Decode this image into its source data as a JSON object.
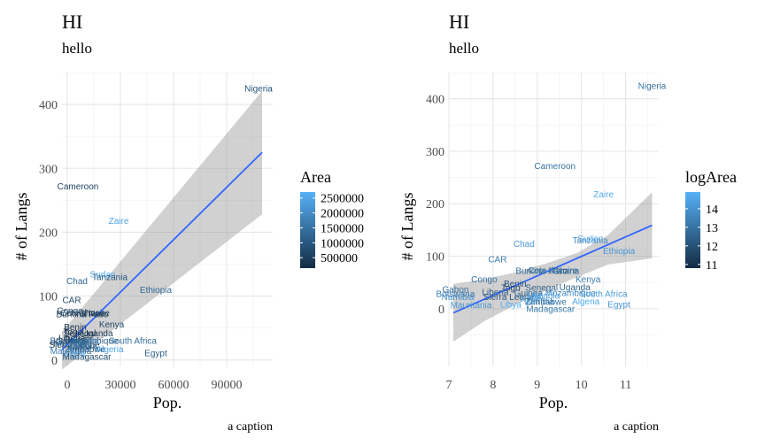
{
  "chart_data": [
    {
      "type": "scatter",
      "title": "HI",
      "subtitle": "hello",
      "xlabel": "Pop.",
      "ylabel": "# of Langs",
      "caption": "a caption",
      "xlim": [
        -3000,
        116000
      ],
      "ylim": [
        -10,
        450
      ],
      "xticks": [
        "0",
        "30000",
        "60000",
        "90000"
      ],
      "xtick_values": [
        0,
        30000,
        60000,
        90000
      ],
      "yticks": [
        "0",
        "100",
        "200",
        "300",
        "400"
      ],
      "ytick_values": [
        0,
        100,
        200,
        300,
        400
      ],
      "legend": {
        "title": "Area",
        "labels": [
          "2500000",
          "2000000",
          "1500000",
          "1000000",
          "500000"
        ],
        "values": [
          2500000,
          2000000,
          1500000,
          1000000,
          500000
        ],
        "range": [
          150000,
          2700000
        ],
        "colors": [
          "#132B43",
          "#56B1F7"
        ],
        "position": "right"
      },
      "points": [
        {
          "label": "Nigeria",
          "x": 108000,
          "y": 425,
          "c": 0.3
        },
        {
          "label": "Cameroon",
          "x": 6000,
          "y": 272,
          "c": 0.15
        },
        {
          "label": "Zaire",
          "x": 29000,
          "y": 218,
          "c": 0.9
        },
        {
          "label": "Chad",
          "x": 5500,
          "y": 124,
          "c": 0.45
        },
        {
          "label": "Sudan",
          "x": 20000,
          "y": 134,
          "c": 0.95
        },
        {
          "label": "Tanzania",
          "x": 24000,
          "y": 130,
          "c": 0.35
        },
        {
          "label": "Ethiopia",
          "x": 50000,
          "y": 110,
          "c": 0.45
        },
        {
          "label": "CAR",
          "x": 2500,
          "y": 94,
          "c": 0.25
        },
        {
          "label": "Congo",
          "x": 1500,
          "y": 77,
          "c": 0.15
        },
        {
          "label": "Cote d'Ivoire",
          "x": 10000,
          "y": 74,
          "c": 0.15
        },
        {
          "label": "Burkina Faso",
          "x": 8500,
          "y": 72,
          "c": 0.12
        },
        {
          "label": "Ghana",
          "x": 14000,
          "y": 73,
          "c": 0.1
        },
        {
          "label": "Kenya",
          "x": 25000,
          "y": 56,
          "c": 0.2
        },
        {
          "label": "Benin",
          "x": 4500,
          "y": 52,
          "c": 0.05
        },
        {
          "label": "Togo",
          "x": 3200,
          "y": 44,
          "c": 0.03
        },
        {
          "label": "Senegal",
          "x": 7000,
          "y": 42,
          "c": 0.1
        },
        {
          "label": "Uganda",
          "x": 17000,
          "y": 42,
          "c": 0.1
        },
        {
          "label": "Liberia",
          "x": 2600,
          "y": 34,
          "c": 0.05
        },
        {
          "label": "Guinea",
          "x": 6000,
          "y": 32,
          "c": 0.1
        },
        {
          "label": "Gabon",
          "x": 1000,
          "y": 30,
          "c": 0.12
        },
        {
          "label": "Mozambique",
          "x": 14500,
          "y": 30,
          "c": 0.4
        },
        {
          "label": "Sierra Leone",
          "x": 4000,
          "y": 24,
          "c": 0.03
        },
        {
          "label": "Mali",
          "x": 8000,
          "y": 25,
          "c": 0.65
        },
        {
          "label": "Niger",
          "x": 7000,
          "y": 20,
          "c": 0.7
        },
        {
          "label": "Angola",
          "x": 10000,
          "y": 30,
          "c": 0.7
        },
        {
          "label": "Zambia",
          "x": 8500,
          "y": 22,
          "c": 0.5
        },
        {
          "label": "Zimbabwe",
          "x": 10000,
          "y": 17,
          "c": 0.25
        },
        {
          "label": "Namibia",
          "x": 1300,
          "y": 26,
          "c": 0.5
        },
        {
          "label": "Botswana",
          "x": 1200,
          "y": 30,
          "c": 0.35
        },
        {
          "label": "South Africa",
          "x": 37000,
          "y": 30,
          "c": 0.5
        },
        {
          "label": "Mauritania",
          "x": 2000,
          "y": 14,
          "c": 0.6
        },
        {
          "label": "Libya",
          "x": 4200,
          "y": 10,
          "c": 0.95
        },
        {
          "label": "Algeria",
          "x": 24000,
          "y": 17,
          "c": 0.9
        },
        {
          "label": "Madagascar",
          "x": 11000,
          "y": 5,
          "c": 0.25
        },
        {
          "label": "Egypt",
          "x": 50000,
          "y": 11,
          "c": 0.4
        }
      ],
      "fit": {
        "x": [
          -3000,
          110000
        ],
        "y": [
          16,
          325
        ]
      },
      "band": {
        "x": [
          -3000,
          110000
        ],
        "lower": [
          -15,
          228
        ],
        "upper": [
          44,
          421
        ]
      }
    },
    {
      "type": "scatter",
      "title": "HI",
      "subtitle": "hello",
      "xlabel": "Pop.",
      "ylabel": "# of Langs",
      "caption": "a caption",
      "xlim": [
        7.0,
        11.75
      ],
      "ylim": [
        -110,
        450
      ],
      "xticks": [
        "7",
        "8",
        "9",
        "10",
        "11"
      ],
      "xtick_values": [
        7,
        8,
        9,
        10,
        11
      ],
      "yticks": [
        "0",
        "100",
        "200",
        "300",
        "400"
      ],
      "ytick_values": [
        0,
        100,
        200,
        300,
        400
      ],
      "legend": {
        "title": "logArea",
        "labels": [
          "14",
          "13",
          "12",
          "11"
        ],
        "values": [
          14,
          13,
          12,
          11
        ],
        "range": [
          10.8,
          14.9
        ],
        "colors": [
          "#132B43",
          "#56B1F7"
        ],
        "position": "right"
      },
      "points": [
        {
          "label": "Nigeria",
          "x": 11.6,
          "y": 425,
          "c": 0.55
        },
        {
          "label": "Cameroon",
          "x": 9.4,
          "y": 272,
          "c": 0.55
        },
        {
          "label": "Zaire",
          "x": 10.5,
          "y": 218,
          "c": 0.95
        },
        {
          "label": "Chad",
          "x": 8.7,
          "y": 124,
          "c": 0.8
        },
        {
          "label": "Sudan",
          "x": 10.2,
          "y": 134,
          "c": 0.95
        },
        {
          "label": "Tanzania",
          "x": 10.2,
          "y": 130,
          "c": 0.7
        },
        {
          "label": "Ethiopia",
          "x": 10.85,
          "y": 110,
          "c": 0.8
        },
        {
          "label": "CAR",
          "x": 8.1,
          "y": 94,
          "c": 0.6
        },
        {
          "label": "Burkina Faso",
          "x": 9.1,
          "y": 72,
          "c": 0.5
        },
        {
          "label": "Cote d'Ivoire",
          "x": 9.35,
          "y": 73,
          "c": 0.5
        },
        {
          "label": "Ghana",
          "x": 9.65,
          "y": 72,
          "c": 0.45
        },
        {
          "label": "Congo",
          "x": 7.8,
          "y": 56,
          "c": 0.55
        },
        {
          "label": "Kenya",
          "x": 10.15,
          "y": 56,
          "c": 0.6
        },
        {
          "label": "Benin",
          "x": 8.5,
          "y": 48,
          "c": 0.3
        },
        {
          "label": "Togo",
          "x": 8.4,
          "y": 40,
          "c": 0.15
        },
        {
          "label": "Senegal",
          "x": 9.1,
          "y": 40,
          "c": 0.4
        },
        {
          "label": "Uganda",
          "x": 9.85,
          "y": 41,
          "c": 0.4
        },
        {
          "label": "Gabon",
          "x": 7.15,
          "y": 37,
          "c": 0.5
        },
        {
          "label": "Liberia",
          "x": 8.05,
          "y": 32,
          "c": 0.35
        },
        {
          "label": "Guinea",
          "x": 8.8,
          "y": 30,
          "c": 0.45
        },
        {
          "label": "Mozambique",
          "x": 9.75,
          "y": 30,
          "c": 0.7
        },
        {
          "label": "South Africa",
          "x": 10.5,
          "y": 28,
          "c": 0.85
        },
        {
          "label": "Botswana",
          "x": 7.15,
          "y": 28,
          "c": 0.6
        },
        {
          "label": "Sierra Leone",
          "x": 8.35,
          "y": 22,
          "c": 0.3
        },
        {
          "label": "Mali",
          "x": 8.95,
          "y": 24,
          "c": 0.85
        },
        {
          "label": "Angola",
          "x": 9.2,
          "y": 25,
          "c": 0.85
        },
        {
          "label": "Niger",
          "x": 8.85,
          "y": 18,
          "c": 0.85
        },
        {
          "label": "Namibia",
          "x": 7.2,
          "y": 22,
          "c": 0.75
        },
        {
          "label": "Zambia",
          "x": 9.05,
          "y": 14,
          "c": 0.7
        },
        {
          "label": "Zimbabwe",
          "x": 9.2,
          "y": 13,
          "c": 0.55
        },
        {
          "label": "Algeria",
          "x": 10.1,
          "y": 14,
          "c": 0.95
        },
        {
          "label": "Mauritania",
          "x": 7.5,
          "y": 7,
          "c": 0.8
        },
        {
          "label": "Libya",
          "x": 8.4,
          "y": 8,
          "c": 0.95
        },
        {
          "label": "Madagascar",
          "x": 9.3,
          "y": 0,
          "c": 0.6
        },
        {
          "label": "Egypt",
          "x": 10.85,
          "y": 8,
          "c": 0.8
        }
      ],
      "fit": {
        "x": [
          7.1,
          11.6
        ],
        "y": [
          -8,
          159
        ]
      },
      "band": {
        "x": [
          7.1,
          7.8,
          8.5,
          9.2,
          9.9,
          10.6,
          11.6
        ],
        "lower": [
          -63,
          -24,
          7,
          35,
          60,
          84,
          96
        ],
        "upper": [
          47,
          56,
          69,
          86,
          106,
          140,
          222
        ]
      }
    }
  ]
}
